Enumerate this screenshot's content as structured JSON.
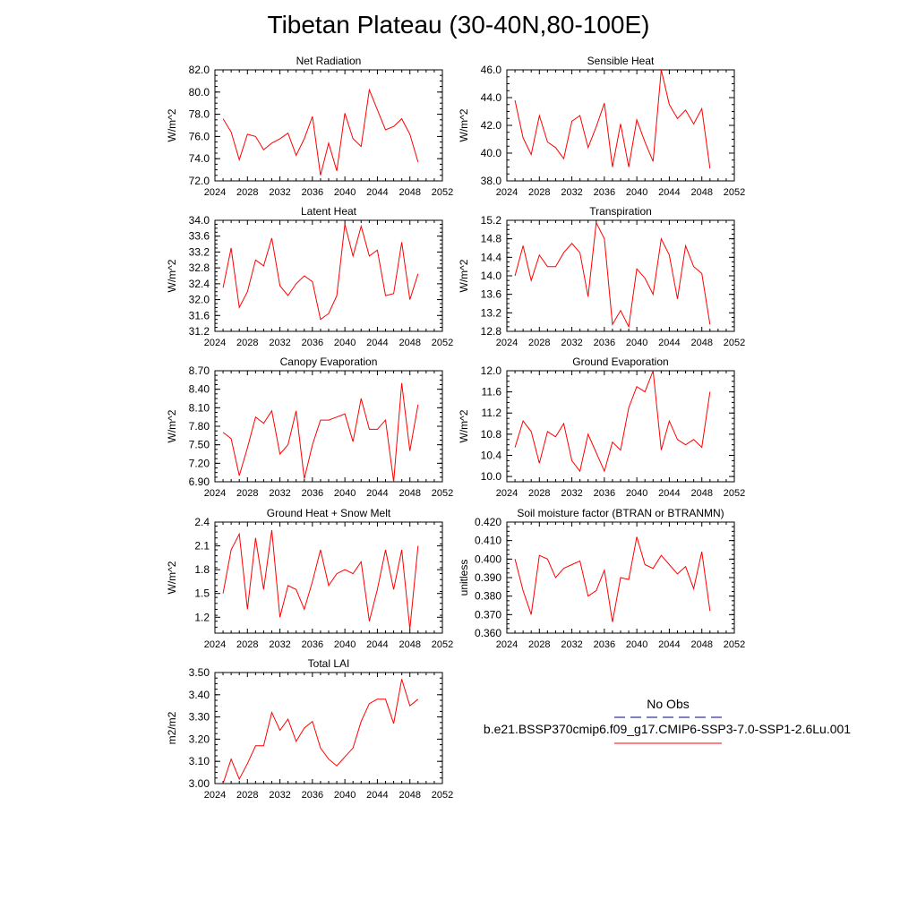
{
  "title": "Tibetan Plateau (30-40N,80-100E)",
  "colors": {
    "model_line": "#ff0000",
    "obs_line": "#00008b",
    "axis": "#000000"
  },
  "legend": {
    "obs_label": "No Obs",
    "model_label": "b.e21.BSSP370cmip6.f09_g17.CMIP6-SSP3-7.0-SSP1-2.6Lu.001"
  },
  "chart_data": [
    {
      "type": "line",
      "title": "Net Radiation",
      "ylabel": "W/m^2",
      "xlim": [
        2024,
        2052
      ],
      "ylim": [
        72.0,
        82.0
      ],
      "xticks": [
        "2024",
        "2028",
        "2032",
        "2036",
        "2040",
        "2044",
        "2048",
        "2052"
      ],
      "yticks": [
        "72.0",
        "74.0",
        "76.0",
        "78.0",
        "80.0",
        "82.0"
      ],
      "x": [
        2025,
        2026,
        2027,
        2028,
        2029,
        2030,
        2031,
        2032,
        2033,
        2034,
        2035,
        2036,
        2037,
        2038,
        2039,
        2040,
        2041,
        2042,
        2043,
        2044,
        2045,
        2046,
        2047,
        2048,
        2049
      ],
      "series": [
        {
          "values": [
            77.6,
            76.4,
            73.9,
            76.2,
            76.0,
            74.8,
            75.4,
            75.8,
            76.3,
            74.3,
            75.8,
            77.8,
            72.5,
            75.4,
            72.9,
            78.1,
            75.8,
            75.1,
            80.2,
            78.4,
            76.6,
            76.9,
            77.6,
            76.2,
            73.7
          ]
        }
      ]
    },
    {
      "type": "line",
      "title": "Sensible Heat",
      "ylabel": "W/m^2",
      "xlim": [
        2024,
        2052
      ],
      "ylim": [
        38.0,
        46.0
      ],
      "xticks": [
        "2024",
        "2028",
        "2032",
        "2036",
        "2040",
        "2044",
        "2048",
        "2052"
      ],
      "yticks": [
        "38.0",
        "40.0",
        "42.0",
        "44.0",
        "46.0"
      ],
      "x": [
        2025,
        2026,
        2027,
        2028,
        2029,
        2030,
        2031,
        2032,
        2033,
        2034,
        2035,
        2036,
        2037,
        2038,
        2039,
        2040,
        2041,
        2042,
        2043,
        2044,
        2045,
        2046,
        2047,
        2048,
        2049
      ],
      "series": [
        {
          "values": [
            43.8,
            41.1,
            39.9,
            42.7,
            40.8,
            40.4,
            39.6,
            42.3,
            42.7,
            40.4,
            41.9,
            43.6,
            39.0,
            42.1,
            39.0,
            42.4,
            40.8,
            39.4,
            46.0,
            43.5,
            42.5,
            43.1,
            42.1,
            43.2,
            38.9
          ]
        }
      ]
    },
    {
      "type": "line",
      "title": "Latent Heat",
      "ylabel": "W/m^2",
      "xlim": [
        2024,
        2052
      ],
      "ylim": [
        31.2,
        34.0
      ],
      "xticks": [
        "2024",
        "2028",
        "2032",
        "2036",
        "2040",
        "2044",
        "2048",
        "2052"
      ],
      "yticks": [
        "31.2",
        "31.6",
        "32.0",
        "32.4",
        "32.8",
        "33.2",
        "33.6",
        "34.0"
      ],
      "x": [
        2025,
        2026,
        2027,
        2028,
        2029,
        2030,
        2031,
        2032,
        2033,
        2034,
        2035,
        2036,
        2037,
        2038,
        2039,
        2040,
        2041,
        2042,
        2043,
        2044,
        2045,
        2046,
        2047,
        2048,
        2049
      ],
      "series": [
        {
          "values": [
            32.3,
            33.3,
            31.8,
            32.2,
            33.0,
            32.85,
            33.55,
            32.35,
            32.1,
            32.4,
            32.6,
            32.45,
            31.5,
            31.65,
            32.1,
            33.9,
            33.1,
            33.85,
            33.1,
            33.25,
            32.1,
            32.15,
            33.45,
            32.0,
            32.65
          ]
        }
      ]
    },
    {
      "type": "line",
      "title": "Transpiration",
      "ylabel": "W/m^2",
      "xlim": [
        2024,
        2052
      ],
      "ylim": [
        12.8,
        15.2
      ],
      "xticks": [
        "2024",
        "2028",
        "2032",
        "2036",
        "2040",
        "2044",
        "2048",
        "2052"
      ],
      "yticks": [
        "12.8",
        "13.2",
        "13.6",
        "14.0",
        "14.4",
        "14.8",
        "15.2"
      ],
      "x": [
        2025,
        2026,
        2027,
        2028,
        2029,
        2030,
        2031,
        2032,
        2033,
        2034,
        2035,
        2036,
        2037,
        2038,
        2039,
        2040,
        2041,
        2042,
        2043,
        2044,
        2045,
        2046,
        2047,
        2048,
        2049
      ],
      "series": [
        {
          "values": [
            14.0,
            14.65,
            13.9,
            14.45,
            14.2,
            14.2,
            14.5,
            14.7,
            14.5,
            13.55,
            15.15,
            14.8,
            12.95,
            13.25,
            12.9,
            14.15,
            13.95,
            13.6,
            14.8,
            14.45,
            13.5,
            14.65,
            14.2,
            14.05,
            12.95
          ]
        }
      ]
    },
    {
      "type": "line",
      "title": "Canopy Evaporation",
      "ylabel": "W/m^2",
      "xlim": [
        2024,
        2052
      ],
      "ylim": [
        6.9,
        8.7
      ],
      "xticks": [
        "2024",
        "2028",
        "2032",
        "2036",
        "2040",
        "2044",
        "2048",
        "2052"
      ],
      "yticks": [
        "6.90",
        "7.20",
        "7.50",
        "7.80",
        "8.10",
        "8.40",
        "8.70"
      ],
      "x": [
        2025,
        2026,
        2027,
        2028,
        2029,
        2030,
        2031,
        2032,
        2033,
        2034,
        2035,
        2036,
        2037,
        2038,
        2039,
        2040,
        2041,
        2042,
        2043,
        2044,
        2045,
        2046,
        2047,
        2048,
        2049
      ],
      "series": [
        {
          "values": [
            7.7,
            7.6,
            7.0,
            7.45,
            7.95,
            7.85,
            8.05,
            7.35,
            7.5,
            8.05,
            6.95,
            7.5,
            7.9,
            7.9,
            7.95,
            8.0,
            7.55,
            8.25,
            7.75,
            7.75,
            7.9,
            6.9,
            8.5,
            7.4,
            8.15
          ]
        }
      ]
    },
    {
      "type": "line",
      "title": "Ground Evaporation",
      "ylabel": "W/m^2",
      "xlim": [
        2024,
        2052
      ],
      "ylim": [
        9.9,
        12.0
      ],
      "xticks": [
        "2024",
        "2028",
        "2032",
        "2036",
        "2040",
        "2044",
        "2048",
        "2052"
      ],
      "yticks": [
        "10.0",
        "10.4",
        "10.8",
        "11.2",
        "11.6",
        "12.0"
      ],
      "x": [
        2025,
        2026,
        2027,
        2028,
        2029,
        2030,
        2031,
        2032,
        2033,
        2034,
        2035,
        2036,
        2037,
        2038,
        2039,
        2040,
        2041,
        2042,
        2043,
        2044,
        2045,
        2046,
        2047,
        2048,
        2049
      ],
      "series": [
        {
          "values": [
            10.55,
            11.05,
            10.85,
            10.25,
            10.85,
            10.75,
            11.0,
            10.3,
            10.1,
            10.8,
            10.45,
            10.1,
            10.65,
            10.5,
            11.3,
            11.7,
            11.6,
            12.0,
            10.5,
            11.05,
            10.7,
            10.6,
            10.7,
            10.55,
            11.6
          ]
        }
      ]
    },
    {
      "type": "line",
      "title": "Ground Heat + Snow Melt",
      "ylabel": "W/m^2",
      "xlim": [
        2024,
        2052
      ],
      "ylim": [
        1.0,
        2.4
      ],
      "xticks": [
        "2024",
        "2028",
        "2032",
        "2036",
        "2040",
        "2044",
        "2048",
        "2052"
      ],
      "yticks": [
        "1.2",
        "1.5",
        "1.8",
        "2.1",
        "2.4"
      ],
      "x": [
        2025,
        2026,
        2027,
        2028,
        2029,
        2030,
        2031,
        2032,
        2033,
        2034,
        2035,
        2036,
        2037,
        2038,
        2039,
        2040,
        2041,
        2042,
        2043,
        2044,
        2045,
        2046,
        2047,
        2048,
        2049
      ],
      "series": [
        {
          "values": [
            1.5,
            2.05,
            2.25,
            1.3,
            2.2,
            1.55,
            2.3,
            1.2,
            1.6,
            1.55,
            1.3,
            1.65,
            2.05,
            1.6,
            1.75,
            1.8,
            1.75,
            1.9,
            1.15,
            1.55,
            2.05,
            1.55,
            2.05,
            1.05,
            2.1
          ]
        }
      ]
    },
    {
      "type": "line",
      "title": "Soil moisture factor (BTRAN or BTRANMN)",
      "ylabel": "unitless",
      "xlim": [
        2024,
        2052
      ],
      "ylim": [
        0.36,
        0.42
      ],
      "xticks": [
        "2024",
        "2028",
        "2032",
        "2036",
        "2040",
        "2044",
        "2048",
        "2052"
      ],
      "yticks": [
        "0.360",
        "0.370",
        "0.380",
        "0.390",
        "0.400",
        "0.410",
        "0.420"
      ],
      "x": [
        2025,
        2026,
        2027,
        2028,
        2029,
        2030,
        2031,
        2032,
        2033,
        2034,
        2035,
        2036,
        2037,
        2038,
        2039,
        2040,
        2041,
        2042,
        2043,
        2044,
        2045,
        2046,
        2047,
        2048,
        2049
      ],
      "series": [
        {
          "values": [
            0.4,
            0.383,
            0.37,
            0.402,
            0.4,
            0.39,
            0.395,
            0.397,
            0.399,
            0.38,
            0.383,
            0.394,
            0.366,
            0.39,
            0.389,
            0.412,
            0.397,
            0.395,
            0.402,
            0.397,
            0.392,
            0.396,
            0.384,
            0.404,
            0.372
          ]
        }
      ]
    },
    {
      "type": "line",
      "title": "Total LAI",
      "ylabel": "m2/m2",
      "xlim": [
        2024,
        2052
      ],
      "ylim": [
        3.0,
        3.5
      ],
      "xticks": [
        "2024",
        "2028",
        "2032",
        "2036",
        "2040",
        "2044",
        "2048",
        "2052"
      ],
      "yticks": [
        "3.00",
        "3.10",
        "3.20",
        "3.30",
        "3.40",
        "3.50"
      ],
      "x": [
        2025,
        2026,
        2027,
        2028,
        2029,
        2030,
        2031,
        2032,
        2033,
        2034,
        2035,
        2036,
        2037,
        2038,
        2039,
        2040,
        2041,
        2042,
        2043,
        2044,
        2045,
        2046,
        2047,
        2048,
        2049
      ],
      "series": [
        {
          "values": [
            3.0,
            3.11,
            3.02,
            3.09,
            3.17,
            3.17,
            3.32,
            3.24,
            3.29,
            3.19,
            3.25,
            3.28,
            3.16,
            3.11,
            3.08,
            3.12,
            3.16,
            3.28,
            3.36,
            3.38,
            3.38,
            3.27,
            3.47,
            3.35,
            3.38
          ]
        }
      ]
    }
  ]
}
